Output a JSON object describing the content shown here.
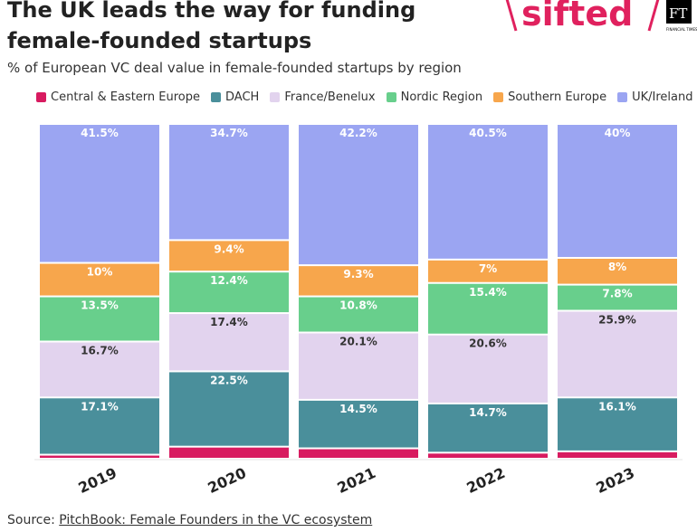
{
  "header": {
    "title": "The UK leads the way for funding female-founded startups",
    "subtitle": "% of European VC deal value in female-founded startups by region",
    "logo_text": "sifted",
    "logo_badge": "FT",
    "logo_badge_caption": "FINANCIAL TIMES"
  },
  "source": {
    "prefix": "Source: ",
    "link": "PitchBook: Female Founders in the VC ecosystem"
  },
  "chart_data": {
    "type": "bar",
    "stacked": true,
    "ylim": [
      0,
      100
    ],
    "categories": [
      "2019",
      "2020",
      "2021",
      "2022",
      "2023"
    ],
    "series": [
      {
        "name": "Central & Eastern Europe",
        "color": "#d81b60",
        "values": [
          1.2,
          3.6,
          3.1,
          1.8,
          2.2
        ],
        "labeled": false
      },
      {
        "name": "DACH",
        "color": "#4a8f9b",
        "values": [
          17.1,
          22.5,
          14.5,
          14.7,
          16.1
        ],
        "labeled": true
      },
      {
        "name": "France/Benelux",
        "color": "#e2d3ee",
        "values": [
          16.7,
          17.4,
          20.1,
          20.6,
          25.9
        ],
        "labeled": true
      },
      {
        "name": "Nordic Region",
        "color": "#68cf8c",
        "values": [
          13.5,
          12.4,
          10.8,
          15.4,
          7.8
        ],
        "labeled": true
      },
      {
        "name": "Southern Europe",
        "color": "#f7a64c",
        "values": [
          10,
          9.4,
          9.3,
          7,
          8
        ],
        "labeled": true
      },
      {
        "name": "UK/Ireland",
        "color": "#9ba5f2",
        "values": [
          41.5,
          34.7,
          42.2,
          40.5,
          40
        ],
        "labeled": true
      }
    ]
  }
}
